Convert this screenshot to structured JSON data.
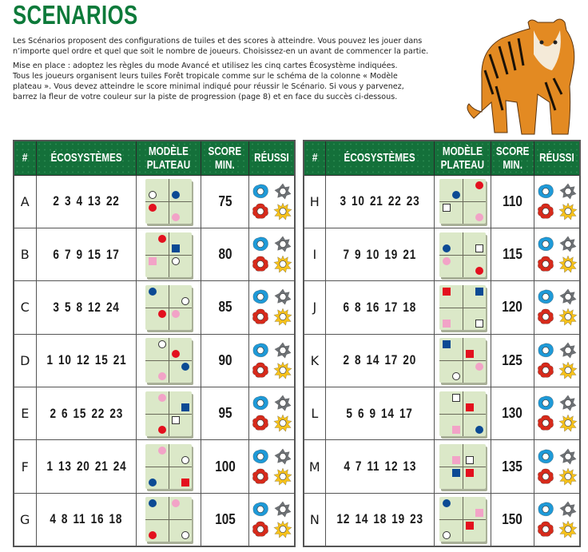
{
  "title": "SCENARIOS",
  "intro": [
    "Les Scénarios proposent des configurations de tuiles et des scores à atteindre. Vous pouvez les jouer dans\nn’importe quel ordre et quel que soit le nombre de joueurs. Choisissez-en un avant de commencer la partie.",
    "Mise en place : adoptez les règles du mode Avancé et utilisez les cinq cartes Écosystème indiquées.\nTous les joueurs organisent leurs tuiles Forêt tropicale comme sur le schéma de la colonne « Modèle\nplateau ». Vous devez atteindre le score minimal indiqué pour réussir le Scénario. Si vous y parvenez,\nbarrez la fleur de votre couleur sur la piste de progression (page 8) et en face du succès ci-dessous."
  ],
  "headers": {
    "id": "#",
    "eco": "ÉCOSYSTÈMES",
    "model": "MODÈLE PLATEAU",
    "score": "SCORE MIN.",
    "success": "RÉUSSI"
  },
  "colors": {
    "green": "#14703a",
    "white": "#ffffff",
    "blue": "#0b4a94",
    "red": "#e3101e",
    "pink": "#f2a3c7"
  },
  "flower_colors": [
    "#1e9ad8",
    "#6e7276",
    "#d72a1b",
    "#f7c21a"
  ],
  "scenarios_left": [
    {
      "id": "A",
      "eco": "2 3 4 13 22",
      "score": "75",
      "markers": [
        [
          "circle",
          "white",
          "tl",
          "bl"
        ],
        [
          "circle",
          "blue",
          "tr",
          "bl"
        ],
        [
          "circle",
          "red",
          "bl",
          "tl"
        ],
        [
          "circle",
          "pink",
          "br",
          "bl"
        ]
      ]
    },
    {
      "id": "B",
      "eco": "6 7 9 15 17",
      "score": "80",
      "markers": [
        [
          "circle",
          "red",
          "tl",
          "tr"
        ],
        [
          "square",
          "blue",
          "tr",
          "bl"
        ],
        [
          "square",
          "pink",
          "bl",
          "tl"
        ],
        [
          "circle",
          "white",
          "br",
          "tl"
        ]
      ]
    },
    {
      "id": "C",
      "eco": "3 5 8 12 24",
      "score": "85",
      "markers": [
        [
          "circle",
          "blue",
          "tl",
          "tl"
        ],
        [
          "circle",
          "white",
          "tr",
          "br"
        ],
        [
          "circle",
          "red",
          "bl",
          "tr"
        ],
        [
          "circle",
          "pink",
          "br",
          "tl"
        ]
      ]
    },
    {
      "id": "D",
      "eco": "1 10 12 15 21",
      "score": "90",
      "markers": [
        [
          "circle",
          "white",
          "tl",
          "tr"
        ],
        [
          "circle",
          "red",
          "tr",
          "bl"
        ],
        [
          "circle",
          "blue",
          "br",
          "tr"
        ],
        [
          "circle",
          "pink",
          "bl",
          "br"
        ]
      ]
    },
    {
      "id": "E",
      "eco": "2 6 15 22 23",
      "score": "95",
      "markers": [
        [
          "circle",
          "pink",
          "tl",
          "tr"
        ],
        [
          "square",
          "blue",
          "tr",
          "br"
        ],
        [
          "square",
          "white",
          "br",
          "tl"
        ],
        [
          "circle",
          "red",
          "bl",
          "br"
        ]
      ]
    },
    {
      "id": "F",
      "eco": "1 13 20 21 24",
      "score": "100",
      "markers": [
        [
          "circle",
          "pink",
          "tl",
          "tr"
        ],
        [
          "circle",
          "white",
          "tr",
          "br"
        ],
        [
          "circle",
          "blue",
          "bl",
          "bl"
        ],
        [
          "square",
          "red",
          "br",
          "br"
        ]
      ]
    },
    {
      "id": "G",
      "eco": "4 8 11 16 18",
      "score": "105",
      "markers": [
        [
          "circle",
          "blue",
          "tl",
          "tl"
        ],
        [
          "circle",
          "pink",
          "tr",
          "tl"
        ],
        [
          "circle",
          "red",
          "bl",
          "bl"
        ],
        [
          "circle",
          "white",
          "br",
          "br"
        ]
      ]
    }
  ],
  "scenarios_right": [
    {
      "id": "H",
      "eco": "3 10 21 22 23",
      "score": "110",
      "markers": [
        [
          "circle",
          "red",
          "tr",
          "tr"
        ],
        [
          "circle",
          "blue",
          "tl",
          "br"
        ],
        [
          "square",
          "white",
          "bl",
          "tl"
        ],
        [
          "circle",
          "pink",
          "br",
          "br"
        ]
      ]
    },
    {
      "id": "I",
      "eco": "7 9 10 19 21",
      "score": "115",
      "markers": [
        [
          "circle",
          "blue",
          "tl",
          "bl"
        ],
        [
          "square",
          "white",
          "tr",
          "br"
        ],
        [
          "circle",
          "pink",
          "bl",
          "tl"
        ],
        [
          "circle",
          "red",
          "br",
          "br"
        ]
      ]
    },
    {
      "id": "J",
      "eco": "6 8 16 17 18",
      "score": "120",
      "markers": [
        [
          "square",
          "red",
          "tl",
          "tl"
        ],
        [
          "square",
          "blue",
          "tr",
          "tr"
        ],
        [
          "square",
          "pink",
          "bl",
          "bl"
        ],
        [
          "square",
          "white",
          "br",
          "br"
        ]
      ]
    },
    {
      "id": "K",
      "eco": "2 8 14 17 20",
      "score": "125",
      "markers": [
        [
          "square",
          "blue",
          "tl",
          "tl"
        ],
        [
          "square",
          "red",
          "tr",
          "bl"
        ],
        [
          "circle",
          "pink",
          "br",
          "tr"
        ],
        [
          "circle",
          "white",
          "bl",
          "br"
        ]
      ]
    },
    {
      "id": "L",
      "eco": "5 6 9 14 17",
      "score": "130",
      "markers": [
        [
          "square",
          "white",
          "tl",
          "tr"
        ],
        [
          "square",
          "red",
          "tr",
          "bl"
        ],
        [
          "square",
          "pink",
          "bl",
          "br"
        ],
        [
          "circle",
          "blue",
          "br",
          "br"
        ]
      ]
    },
    {
      "id": "M",
      "eco": "4 7 11 12 13",
      "score": "135",
      "markers": [
        [
          "square",
          "pink",
          "tl",
          "br"
        ],
        [
          "square",
          "white",
          "tr",
          "bl"
        ],
        [
          "square",
          "blue",
          "bl",
          "tr"
        ],
        [
          "square",
          "red",
          "br",
          "tl"
        ]
      ]
    },
    {
      "id": "N",
      "eco": "12 14 18 19 23",
      "score": "150",
      "markers": [
        [
          "circle",
          "blue",
          "tl",
          "tl"
        ],
        [
          "square",
          "pink",
          "tr",
          "br"
        ],
        [
          "square",
          "red",
          "br",
          "tl"
        ],
        [
          "circle",
          "white",
          "bl",
          "bl"
        ]
      ]
    }
  ]
}
